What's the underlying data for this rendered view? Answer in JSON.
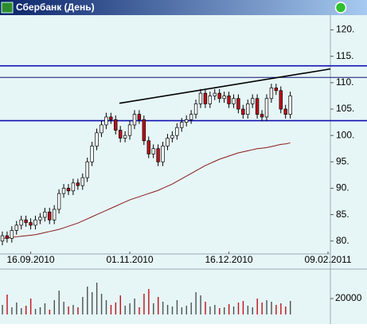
{
  "chart_data": {
    "type": "candlestick",
    "title": "Сбербанк (День)",
    "xlim": [
      -0.5,
      69.5
    ],
    "xticks": [
      {
        "value": 6,
        "label": "16.09.2010"
      },
      {
        "value": 27,
        "label": "01.11.2010"
      },
      {
        "value": 48,
        "label": "16.12.2010"
      },
      {
        "value": 69,
        "label": "09.02.2011"
      }
    ],
    "ylim": [
      78,
      122.5
    ],
    "yticks": [
      {
        "value": 80,
        "label": "80."
      },
      {
        "value": 85,
        "label": "85."
      },
      {
        "value": 90,
        "label": "90."
      },
      {
        "value": 95,
        "label": "95."
      },
      {
        "value": 100,
        "label": "100."
      },
      {
        "value": 105,
        "label": "105."
      },
      {
        "value": 110,
        "label": "110."
      },
      {
        "value": 115,
        "label": "115."
      },
      {
        "value": 120,
        "label": "120."
      }
    ],
    "up_color": "#ffffff",
    "down_color": "#c0101a",
    "open": [
      80,
      81,
      80.5,
      82,
      83,
      84,
      83.5,
      83,
      84,
      84.5,
      85.5,
      84,
      86,
      89,
      90,
      89.5,
      91,
      90.5,
      92,
      95,
      98,
      100.5,
      102,
      103.5,
      103,
      101,
      99.5,
      100,
      102,
      104,
      103,
      99,
      96.5,
      97.5,
      95,
      98,
      99.5,
      100,
      101.5,
      102.5,
      103,
      104,
      106,
      108,
      106,
      107.5,
      108,
      107,
      107.5,
      106,
      107,
      105,
      104,
      106,
      107,
      104,
      103.5,
      107,
      109,
      108.5,
      105,
      104
    ],
    "high": [
      81.8,
      81.8,
      82.8,
      83.8,
      84.8,
      84.8,
      84.3,
      84.8,
      85.3,
      86.3,
      86.3,
      86.8,
      89.8,
      90.8,
      90.8,
      91.8,
      91.8,
      92.8,
      95.8,
      98.8,
      101.3,
      102.8,
      104.3,
      104.3,
      103.8,
      101.8,
      100.8,
      102.8,
      104.8,
      104.8,
      103.8,
      99.8,
      98.3,
      98.3,
      98.8,
      100.3,
      100.8,
      102.3,
      103.3,
      103.8,
      104.8,
      106.8,
      108.8,
      108.8,
      108.3,
      108.8,
      108.8,
      108.3,
      108.3,
      107.8,
      107.8,
      105.8,
      106.8,
      107.8,
      107.8,
      104.8,
      107.8,
      109.8,
      109.8,
      109.3,
      105.8,
      108.3
    ],
    "low": [
      79.2,
      79.7,
      79.7,
      81.2,
      82.2,
      82.7,
      82.2,
      82.2,
      83.2,
      83.7,
      83.2,
      83.2,
      85.2,
      88.2,
      88.7,
      88.7,
      89.7,
      89.7,
      91.2,
      94.2,
      97.2,
      99.7,
      101.2,
      102.2,
      100.2,
      98.7,
      98.7,
      99.2,
      101.2,
      102.2,
      98.2,
      95.7,
      95.7,
      94.2,
      94.2,
      97.2,
      98.7,
      99.2,
      100.7,
      101.7,
      102.2,
      103.2,
      105.2,
      105.2,
      105.2,
      106.7,
      106.2,
      106.2,
      105.2,
      105.2,
      104.2,
      103.2,
      103.2,
      105.2,
      103.2,
      102.7,
      102.7,
      106.2,
      107.7,
      104.2,
      103.2,
      103.2
    ],
    "close": [
      81,
      80.5,
      82,
      83,
      84,
      83.5,
      83,
      84,
      84.5,
      85.5,
      84,
      86,
      89,
      90,
      89.5,
      91,
      90.5,
      92,
      95,
      98,
      100.5,
      102,
      103.5,
      103,
      101,
      99.5,
      100,
      102,
      104,
      103,
      99,
      96.5,
      97.5,
      95,
      98,
      99.5,
      100,
      101.5,
      102.5,
      103,
      104,
      106,
      108,
      106,
      107.5,
      108,
      107,
      107.5,
      106,
      107,
      105,
      104,
      106,
      107,
      104,
      103.5,
      107,
      109,
      108.5,
      105,
      104,
      107.5
    ],
    "ma": {
      "color": "#8b1a1a",
      "values": [
        80.5,
        80.6,
        80.7,
        80.8,
        80.9,
        81,
        81.1,
        81.2,
        81.4,
        81.6,
        81.8,
        82,
        82.2,
        82.5,
        82.8,
        83.1,
        83.4,
        83.8,
        84.2,
        84.6,
        85,
        85.4,
        85.8,
        86.2,
        86.6,
        87,
        87.4,
        87.8,
        88.1,
        88.4,
        88.7,
        89,
        89.3,
        89.6,
        90,
        90.4,
        90.8,
        91.3,
        91.8,
        92.3,
        92.8,
        93.3,
        93.8,
        94.3,
        94.7,
        95.1,
        95.5,
        95.8,
        96.1,
        96.4,
        96.7,
        96.9,
        97.1,
        97.3,
        97.5,
        97.6,
        97.7,
        97.9,
        98.1,
        98.3,
        98.4,
        98.6
      ]
    },
    "hlines": [
      {
        "value": 113.2,
        "color": "#1010b0"
      },
      {
        "value": 111,
        "color": "#101070"
      },
      {
        "value": 102.8,
        "color": "#1010b0"
      }
    ],
    "trendline": {
      "x": [
        24.8,
        69.5
      ],
      "y": [
        106.1,
        112.6
      ],
      "color": "#000000"
    },
    "volume": {
      "ylim": [
        0,
        50000
      ],
      "yticks": [
        20000
      ],
      "up_color": "#505050",
      "down_color": "#c0101a",
      "values": [
        12000,
        25000,
        9000,
        15000,
        8000,
        11000,
        20000,
        7000,
        9000,
        14000,
        6000,
        18000,
        30000,
        16000,
        10000,
        12000,
        9000,
        22000,
        35000,
        28000,
        40000,
        26000,
        18000,
        12000,
        15000,
        24000,
        11000,
        14000,
        20000,
        9000,
        26000,
        32000,
        14000,
        22000,
        16000,
        12000,
        10000,
        18000,
        9000,
        11000,
        15000,
        28000,
        24000,
        16000,
        10000,
        12000,
        8000,
        9000,
        13000,
        10000,
        15000,
        17000,
        11000,
        9000,
        20000,
        15000,
        18000,
        16000,
        12000,
        14000,
        10000,
        17000
      ]
    }
  }
}
